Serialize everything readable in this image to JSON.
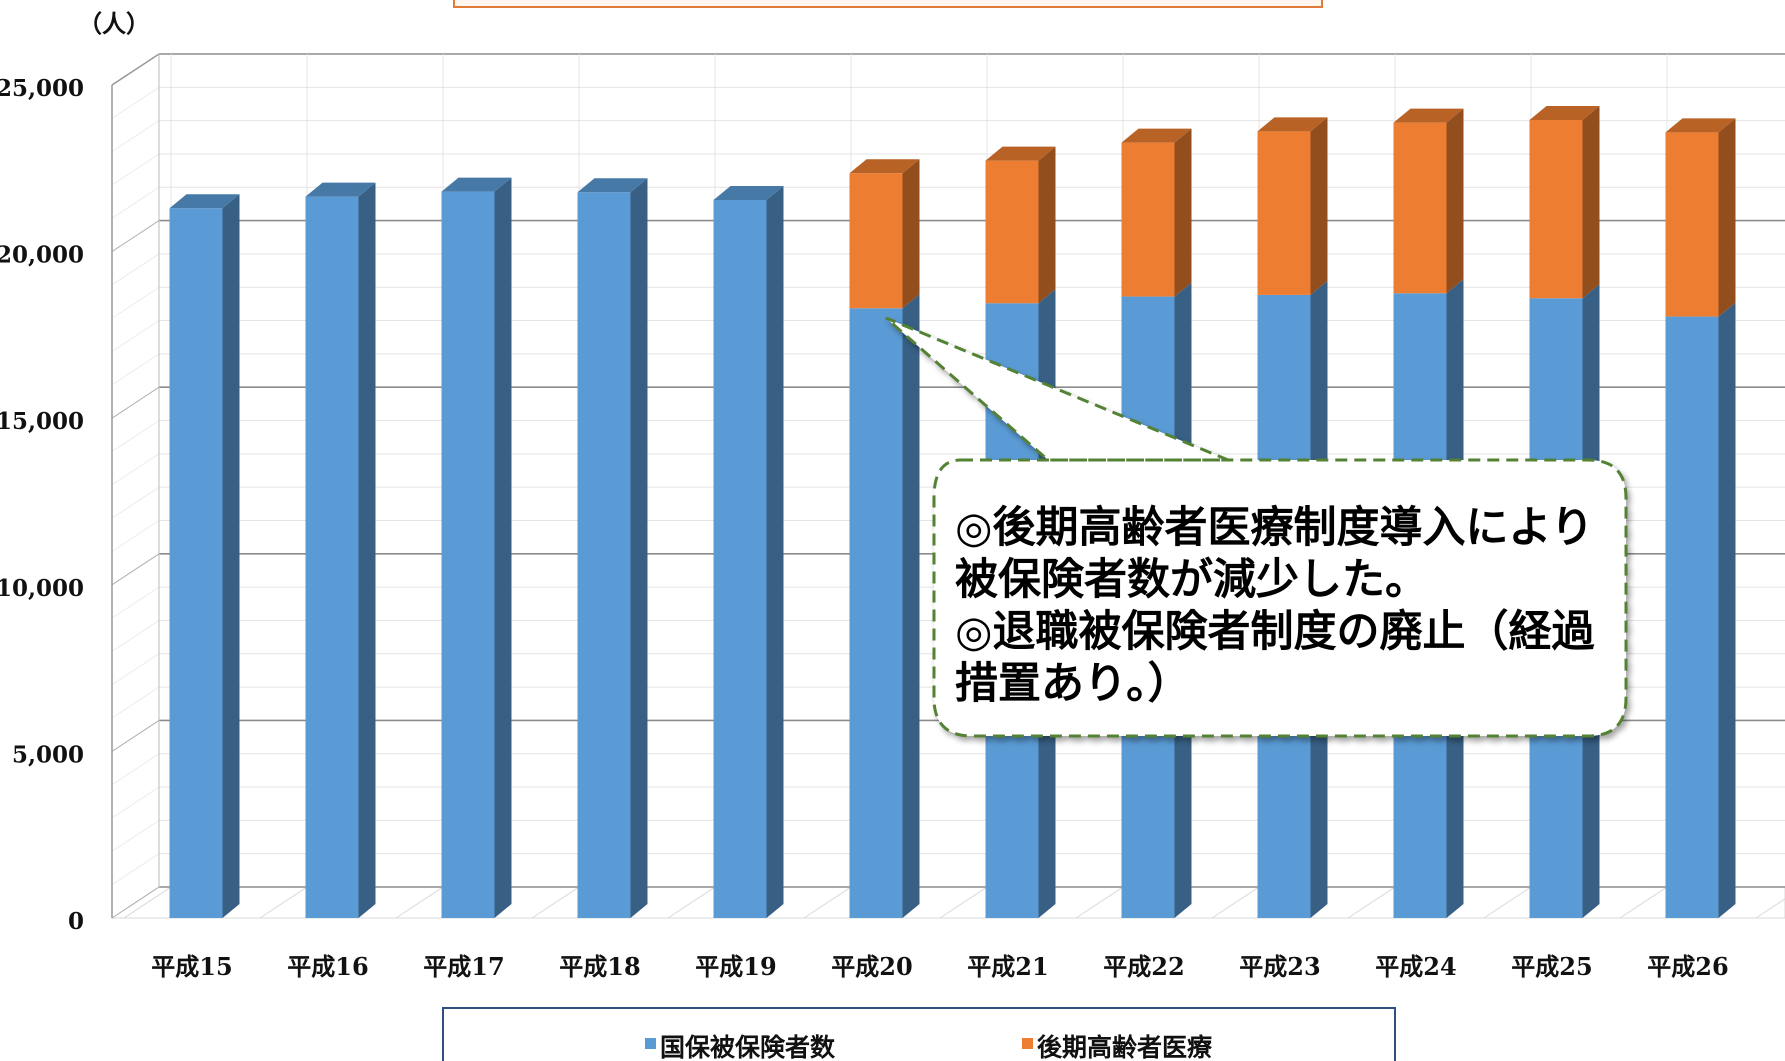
{
  "chart_data": {
    "type": "bar",
    "stacked": true,
    "three_d": true,
    "unit_label": "（人）",
    "categories": [
      "平成15",
      "平成16",
      "平成17",
      "平成18",
      "平成19",
      "平成20",
      "平成21",
      "平成22",
      "平成23",
      "平成24",
      "平成25",
      "平成26"
    ],
    "series": [
      {
        "name": "国保被保険者数",
        "color": "#5b9bd5",
        "values": [
          21300,
          21650,
          21800,
          21780,
          21550,
          18300,
          18450,
          18650,
          18700,
          18750,
          18600,
          18050
        ]
      },
      {
        "name": "後期高齢者医療",
        "color": "#ed7d31",
        "values": [
          0,
          0,
          0,
          0,
          0,
          4050,
          4280,
          4620,
          4910,
          5120,
          5350,
          5530
        ]
      }
    ],
    "y_ticks": [
      "0",
      "5,000",
      "10,000",
      "15,000",
      "20,000",
      "25,000"
    ],
    "ylim": [
      0,
      25000
    ],
    "grid": true,
    "legend_position": "bottom"
  },
  "callout": {
    "lines": [
      "◎後期高齢者医療制度導入により",
      "被保険者数が減少した。",
      "◎退職被保険者制度の廃止（経過",
      "措置あり。）"
    ],
    "border_color": "#548235"
  }
}
